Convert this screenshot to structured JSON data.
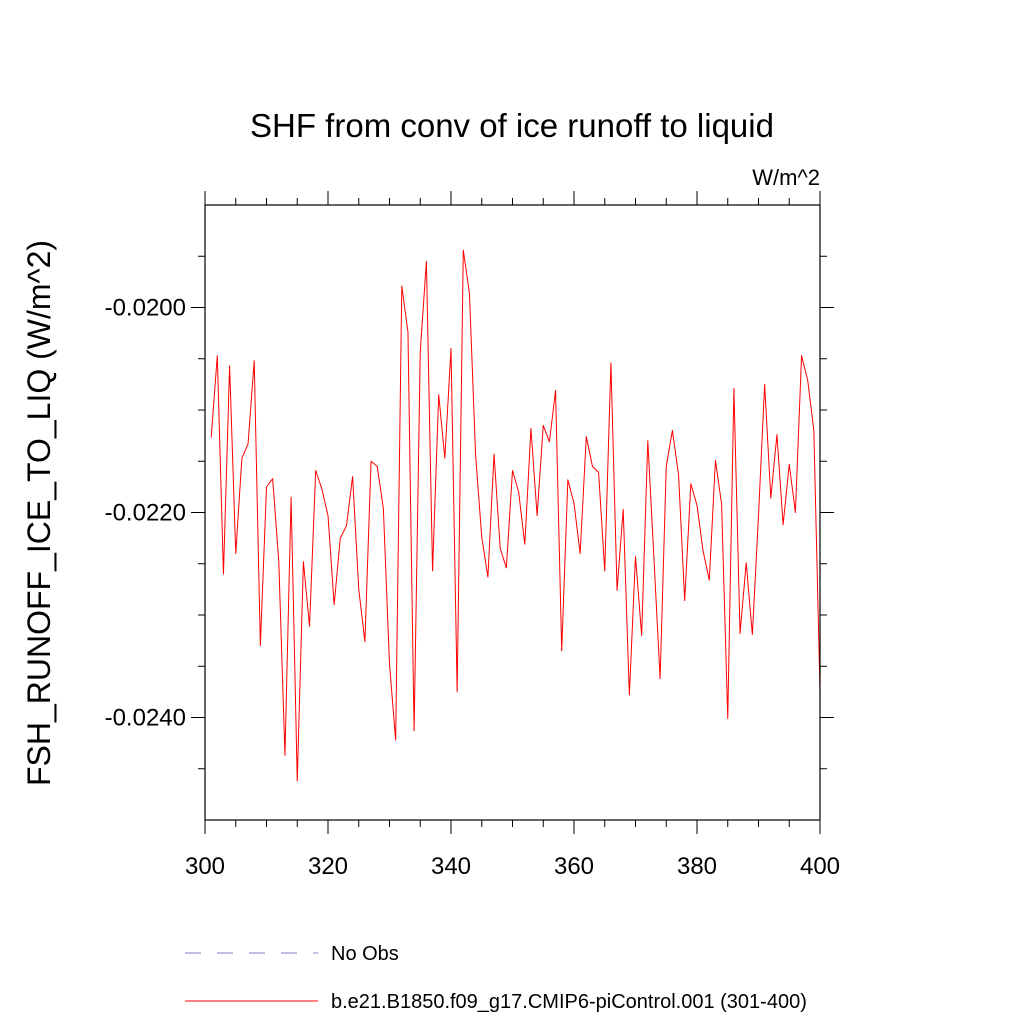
{
  "chart_data": {
    "type": "line",
    "title": "SHF from conv of ice runoff to liquid",
    "units_label": "W/m^2",
    "xlabel": "",
    "ylabel": "FSH_RUNOFF_ICE_TO_LIQ  (W/m^2)",
    "xlim": [
      300,
      400
    ],
    "ylim": [
      -0.025,
      -0.019
    ],
    "x_ticks": [
      300,
      320,
      340,
      360,
      380,
      400
    ],
    "x_tick_labels": [
      "300",
      "320",
      "340",
      "360",
      "380",
      "400"
    ],
    "x_minor_step": 5,
    "y_ticks": [
      -0.024,
      -0.022,
      -0.02
    ],
    "y_tick_labels": [
      "-0.0240",
      "-0.0220",
      "-0.0200"
    ],
    "y_minor_step": 0.0005,
    "grid": false,
    "series": [
      {
        "name": "b.e21.B1850.f09_g17.CMIP6-piControl.001 (301-400)",
        "color": "#ff0000",
        "dash": "solid",
        "x": [
          301,
          302,
          303,
          304,
          305,
          306,
          307,
          308,
          309,
          310,
          311,
          312,
          313,
          314,
          315,
          316,
          317,
          318,
          319,
          320,
          321,
          322,
          323,
          324,
          325,
          326,
          327,
          328,
          329,
          330,
          331,
          332,
          333,
          334,
          335,
          336,
          337,
          338,
          339,
          340,
          341,
          342,
          343,
          344,
          345,
          346,
          347,
          348,
          349,
          350,
          351,
          352,
          353,
          354,
          355,
          356,
          357,
          358,
          359,
          360,
          361,
          362,
          363,
          364,
          365,
          366,
          367,
          368,
          369,
          370,
          371,
          372,
          373,
          374,
          375,
          376,
          377,
          378,
          379,
          380,
          381,
          382,
          383,
          384,
          385,
          386,
          387,
          388,
          389,
          390,
          391,
          392,
          393,
          394,
          395,
          396,
          397,
          398,
          399,
          400
        ],
        "values": [
          -0.02127,
          -0.02047,
          -0.0226,
          -0.02057,
          -0.0224,
          -0.02147,
          -0.02133,
          -0.02052,
          -0.0233,
          -0.02175,
          -0.02167,
          -0.02248,
          -0.02437,
          -0.02185,
          -0.02462,
          -0.02248,
          -0.02311,
          -0.02159,
          -0.02177,
          -0.02203,
          -0.0229,
          -0.02225,
          -0.02213,
          -0.02165,
          -0.02275,
          -0.02326,
          -0.0215,
          -0.02155,
          -0.02196,
          -0.02348,
          -0.02422,
          -0.01979,
          -0.02024,
          -0.02413,
          -0.02043,
          -0.01955,
          -0.02257,
          -0.02085,
          -0.02147,
          -0.0204,
          -0.02375,
          -0.01944,
          -0.01986,
          -0.02144,
          -0.02224,
          -0.02263,
          -0.02143,
          -0.02235,
          -0.02254,
          -0.02159,
          -0.0218,
          -0.02231,
          -0.02118,
          -0.02203,
          -0.02115,
          -0.02131,
          -0.02081,
          -0.02335,
          -0.02168,
          -0.02191,
          -0.0224,
          -0.02126,
          -0.02155,
          -0.02161,
          -0.02257,
          -0.02054,
          -0.02276,
          -0.02197,
          -0.02378,
          -0.02243,
          -0.0232,
          -0.0213,
          -0.02245,
          -0.02362,
          -0.02155,
          -0.0212,
          -0.02163,
          -0.02286,
          -0.02172,
          -0.02193,
          -0.02238,
          -0.02266,
          -0.02149,
          -0.02192,
          -0.02401,
          -0.02079,
          -0.02318,
          -0.02249,
          -0.02319,
          -0.02203,
          -0.02075,
          -0.02186,
          -0.02124,
          -0.02212,
          -0.02153,
          -0.022,
          -0.02047,
          -0.02071,
          -0.0212,
          -0.02375
        ]
      }
    ],
    "legend": {
      "position": "bottom",
      "entries": [
        {
          "label": "No Obs",
          "color": "#8a7fc9",
          "dash": "dashed"
        },
        {
          "label": "b.e21.B1850.f09_g17.CMIP6-piControl.001 (301-400)",
          "color": "#ff0000",
          "dash": "solid"
        }
      ]
    }
  }
}
